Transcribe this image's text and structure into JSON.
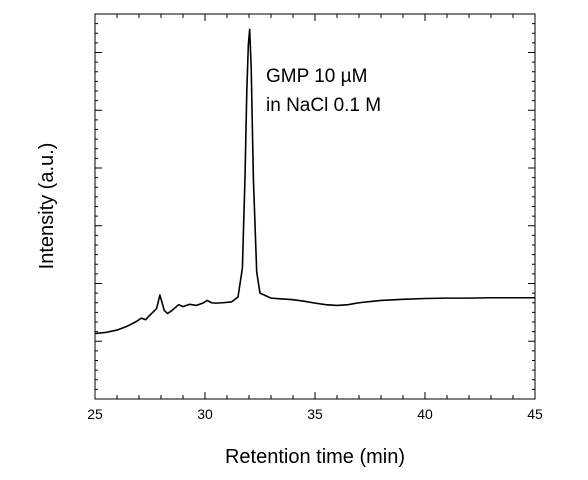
{
  "chart_data": {
    "type": "line",
    "xlabel": "Retention time (min)",
    "ylabel": "Intensity (a.u.)",
    "xlim": [
      25,
      45
    ],
    "ylim": [
      0,
      100
    ],
    "x_ticks": [
      25,
      30,
      35,
      40,
      45
    ],
    "x_tick_labels": [
      "25",
      "30",
      "35",
      "40",
      "45"
    ],
    "y_tick_labels_shown": false,
    "grid": false,
    "annotation_lines": [
      "GMP 10 µM",
      "in NaCl 0.1 M"
    ],
    "series": [
      {
        "color": "#000000",
        "x": [
          25.0,
          25.5,
          26.0,
          26.5,
          26.9,
          27.1,
          27.3,
          27.5,
          27.8,
          27.95,
          28.05,
          28.15,
          28.3,
          28.5,
          28.8,
          29.0,
          29.3,
          29.6,
          29.9,
          30.1,
          30.3,
          30.5,
          30.8,
          31.2,
          31.5,
          31.7,
          31.82,
          31.9,
          31.97,
          32.03,
          32.1,
          32.2,
          32.35,
          32.5,
          33.0,
          33.5,
          34.0,
          34.5,
          35.0,
          35.5,
          36.0,
          36.5,
          37.0,
          37.5,
          38.0,
          39.0,
          40.0,
          41.0,
          42.0,
          43.0,
          44.0,
          45.0
        ],
        "y": [
          17.0,
          17.3,
          17.9,
          19.0,
          20.2,
          21.0,
          20.6,
          21.8,
          23.5,
          27.0,
          25.0,
          23.0,
          22.2,
          23.0,
          24.5,
          24.0,
          24.6,
          24.3,
          24.9,
          25.6,
          25.0,
          24.9,
          25.0,
          25.2,
          26.5,
          34.0,
          58.0,
          80.0,
          92.0,
          96.0,
          86.0,
          57.0,
          33.0,
          27.5,
          26.2,
          26.0,
          25.8,
          25.4,
          24.9,
          24.5,
          24.3,
          24.5,
          25.0,
          25.3,
          25.6,
          25.9,
          26.1,
          26.2,
          26.2,
          26.3,
          26.3,
          26.3
        ]
      }
    ]
  }
}
